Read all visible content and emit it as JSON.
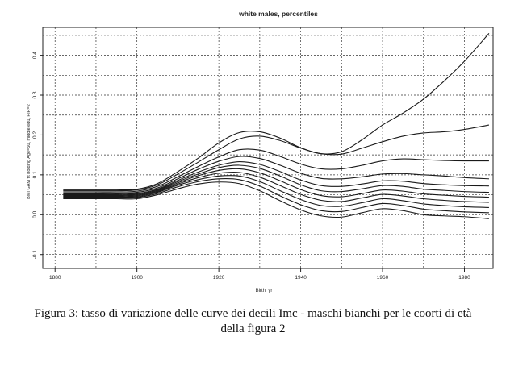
{
  "chart_data": {
    "type": "line",
    "title": "white males, percentiles",
    "xlabel": "Birth_yr",
    "ylabel": "BMI GAM fit holding Age=50, middle edu, PIR=2",
    "xlim": [
      1877,
      1987
    ],
    "ylim": [
      -0.135,
      0.47
    ],
    "x_ticks": [
      "1880",
      "1900",
      "1920",
      "1940",
      "1960",
      "1980"
    ],
    "y_ticks": [
      "-0.1",
      "0.0",
      "0.1",
      "0.2",
      "0.3",
      "0.4"
    ],
    "grid": true,
    "x": [
      1882,
      1890,
      1895,
      1900,
      1905,
      1910,
      1915,
      1920,
      1925,
      1930,
      1935,
      1940,
      1945,
      1950,
      1955,
      1960,
      1965,
      1970,
      1975,
      1980,
      1986
    ],
    "series": [
      {
        "values": [
          0.04,
          0.04,
          0.04,
          0.04,
          0.05,
          0.065,
          0.077,
          0.082,
          0.078,
          0.06,
          0.035,
          0.012,
          -0.003,
          -0.006,
          0.005,
          0.015,
          0.01,
          0.0,
          -0.003,
          -0.005,
          -0.01
        ]
      },
      {
        "values": [
          0.042,
          0.042,
          0.042,
          0.043,
          0.053,
          0.07,
          0.083,
          0.09,
          0.088,
          0.072,
          0.047,
          0.025,
          0.01,
          0.008,
          0.018,
          0.028,
          0.023,
          0.014,
          0.01,
          0.007,
          0.005
        ]
      },
      {
        "values": [
          0.044,
          0.044,
          0.044,
          0.045,
          0.056,
          0.074,
          0.088,
          0.097,
          0.097,
          0.083,
          0.06,
          0.038,
          0.023,
          0.021,
          0.03,
          0.04,
          0.035,
          0.027,
          0.023,
          0.02,
          0.018
        ]
      },
      {
        "values": [
          0.046,
          0.046,
          0.046,
          0.047,
          0.058,
          0.077,
          0.093,
          0.104,
          0.106,
          0.094,
          0.073,
          0.051,
          0.036,
          0.033,
          0.042,
          0.051,
          0.047,
          0.04,
          0.036,
          0.033,
          0.031
        ]
      },
      {
        "values": [
          0.048,
          0.048,
          0.048,
          0.049,
          0.06,
          0.08,
          0.098,
          0.111,
          0.115,
          0.105,
          0.085,
          0.063,
          0.048,
          0.045,
          0.053,
          0.062,
          0.059,
          0.052,
          0.049,
          0.046,
          0.044
        ]
      },
      {
        "values": [
          0.05,
          0.05,
          0.05,
          0.051,
          0.062,
          0.083,
          0.102,
          0.118,
          0.124,
          0.116,
          0.097,
          0.075,
          0.06,
          0.058,
          0.065,
          0.073,
          0.071,
          0.064,
          0.061,
          0.058,
          0.056
        ]
      },
      {
        "values": [
          0.052,
          0.052,
          0.052,
          0.053,
          0.064,
          0.086,
          0.107,
          0.124,
          0.133,
          0.126,
          0.108,
          0.087,
          0.073,
          0.071,
          0.077,
          0.085,
          0.084,
          0.078,
          0.075,
          0.073,
          0.072
        ]
      },
      {
        "values": [
          0.054,
          0.054,
          0.054,
          0.056,
          0.067,
          0.09,
          0.114,
          0.134,
          0.146,
          0.141,
          0.124,
          0.104,
          0.091,
          0.09,
          0.095,
          0.102,
          0.103,
          0.1,
          0.097,
          0.093,
          0.09
        ]
      },
      {
        "values": [
          0.057,
          0.057,
          0.057,
          0.059,
          0.071,
          0.095,
          0.121,
          0.145,
          0.163,
          0.162,
          0.146,
          0.127,
          0.115,
          0.115,
          0.124,
          0.135,
          0.14,
          0.138,
          0.136,
          0.135,
          0.135
        ]
      },
      {
        "values": [
          0.06,
          0.06,
          0.06,
          0.062,
          0.075,
          0.102,
          0.132,
          0.163,
          0.19,
          0.197,
          0.186,
          0.167,
          0.153,
          0.152,
          0.167,
          0.183,
          0.197,
          0.205,
          0.208,
          0.214,
          0.225
        ]
      },
      {
        "values": [
          0.062,
          0.062,
          0.062,
          0.064,
          0.078,
          0.108,
          0.142,
          0.18,
          0.206,
          0.208,
          0.192,
          0.168,
          0.153,
          0.158,
          0.188,
          0.225,
          0.255,
          0.29,
          0.335,
          0.385,
          0.455
        ]
      }
    ]
  },
  "caption": {
    "line1": "Figura 3: tasso di variazione delle curve dei decili Imc - maschi bianchi per le coorti di età",
    "line2": "della figura 2"
  }
}
